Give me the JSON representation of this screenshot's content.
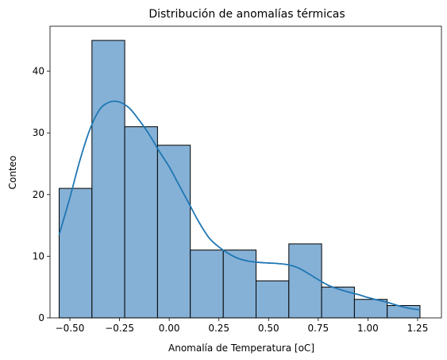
{
  "chart_data": {
    "type": "bar",
    "title": "Distribución de anomalías térmicas",
    "xlabel": "Anomalía de Temperatura [oC]",
    "ylabel": "Conteo",
    "xlim": [
      -0.6,
      1.37
    ],
    "ylim": [
      0,
      47.3
    ],
    "xticks": [
      -0.5,
      -0.25,
      0.0,
      0.25,
      0.5,
      0.75,
      1.0,
      1.25
    ],
    "xtick_labels": [
      "−0.50",
      "−0.25",
      "0.00",
      "0.25",
      "0.50",
      "0.75",
      "1.00",
      "1.25"
    ],
    "yticks": [
      0,
      10,
      20,
      30,
      40
    ],
    "ytick_labels": [
      "0",
      "10",
      "20",
      "30",
      "40"
    ],
    "bins": [
      {
        "x0": -0.554,
        "x1": -0.389,
        "count": 21
      },
      {
        "x0": -0.389,
        "x1": -0.224,
        "count": 45
      },
      {
        "x0": -0.224,
        "x1": -0.059,
        "count": 31
      },
      {
        "x0": -0.059,
        "x1": 0.106,
        "count": 28
      },
      {
        "x0": 0.106,
        "x1": 0.272,
        "count": 11
      },
      {
        "x0": 0.272,
        "x1": 0.437,
        "count": 11
      },
      {
        "x0": 0.437,
        "x1": 0.602,
        "count": 6
      },
      {
        "x0": 0.602,
        "x1": 0.767,
        "count": 12
      },
      {
        "x0": 0.767,
        "x1": 0.932,
        "count": 5
      },
      {
        "x0": 0.932,
        "x1": 1.097,
        "count": 3
      },
      {
        "x0": 1.097,
        "x1": 1.262,
        "count": 2
      }
    ],
    "kde": {
      "x": [
        -0.554,
        -0.5,
        -0.45,
        -0.4,
        -0.35,
        -0.3,
        -0.25,
        -0.2,
        -0.15,
        -0.1,
        -0.05,
        0.0,
        0.05,
        0.1,
        0.15,
        0.2,
        0.25,
        0.3,
        0.35,
        0.4,
        0.45,
        0.5,
        0.55,
        0.6,
        0.65,
        0.7,
        0.75,
        0.8,
        0.85,
        0.9,
        0.95,
        1.0,
        1.05,
        1.1,
        1.15,
        1.2,
        1.262
      ],
      "y": [
        13.5,
        19.5,
        25.5,
        30.5,
        33.8,
        35.0,
        35.0,
        34.0,
        32.0,
        29.7,
        27.0,
        24.5,
        21.5,
        18.5,
        15.5,
        13.0,
        11.5,
        10.4,
        9.6,
        9.2,
        9.0,
        8.9,
        8.8,
        8.6,
        8.1,
        7.2,
        6.2,
        5.3,
        4.7,
        4.2,
        3.8,
        3.3,
        2.9,
        2.5,
        2.0,
        1.6,
        1.3
      ]
    },
    "colors": {
      "bar_fill": "#86b1d6",
      "bar_edge": "#000000",
      "kde_line": "#1f77b4"
    },
    "grid": false,
    "legend": "none"
  }
}
